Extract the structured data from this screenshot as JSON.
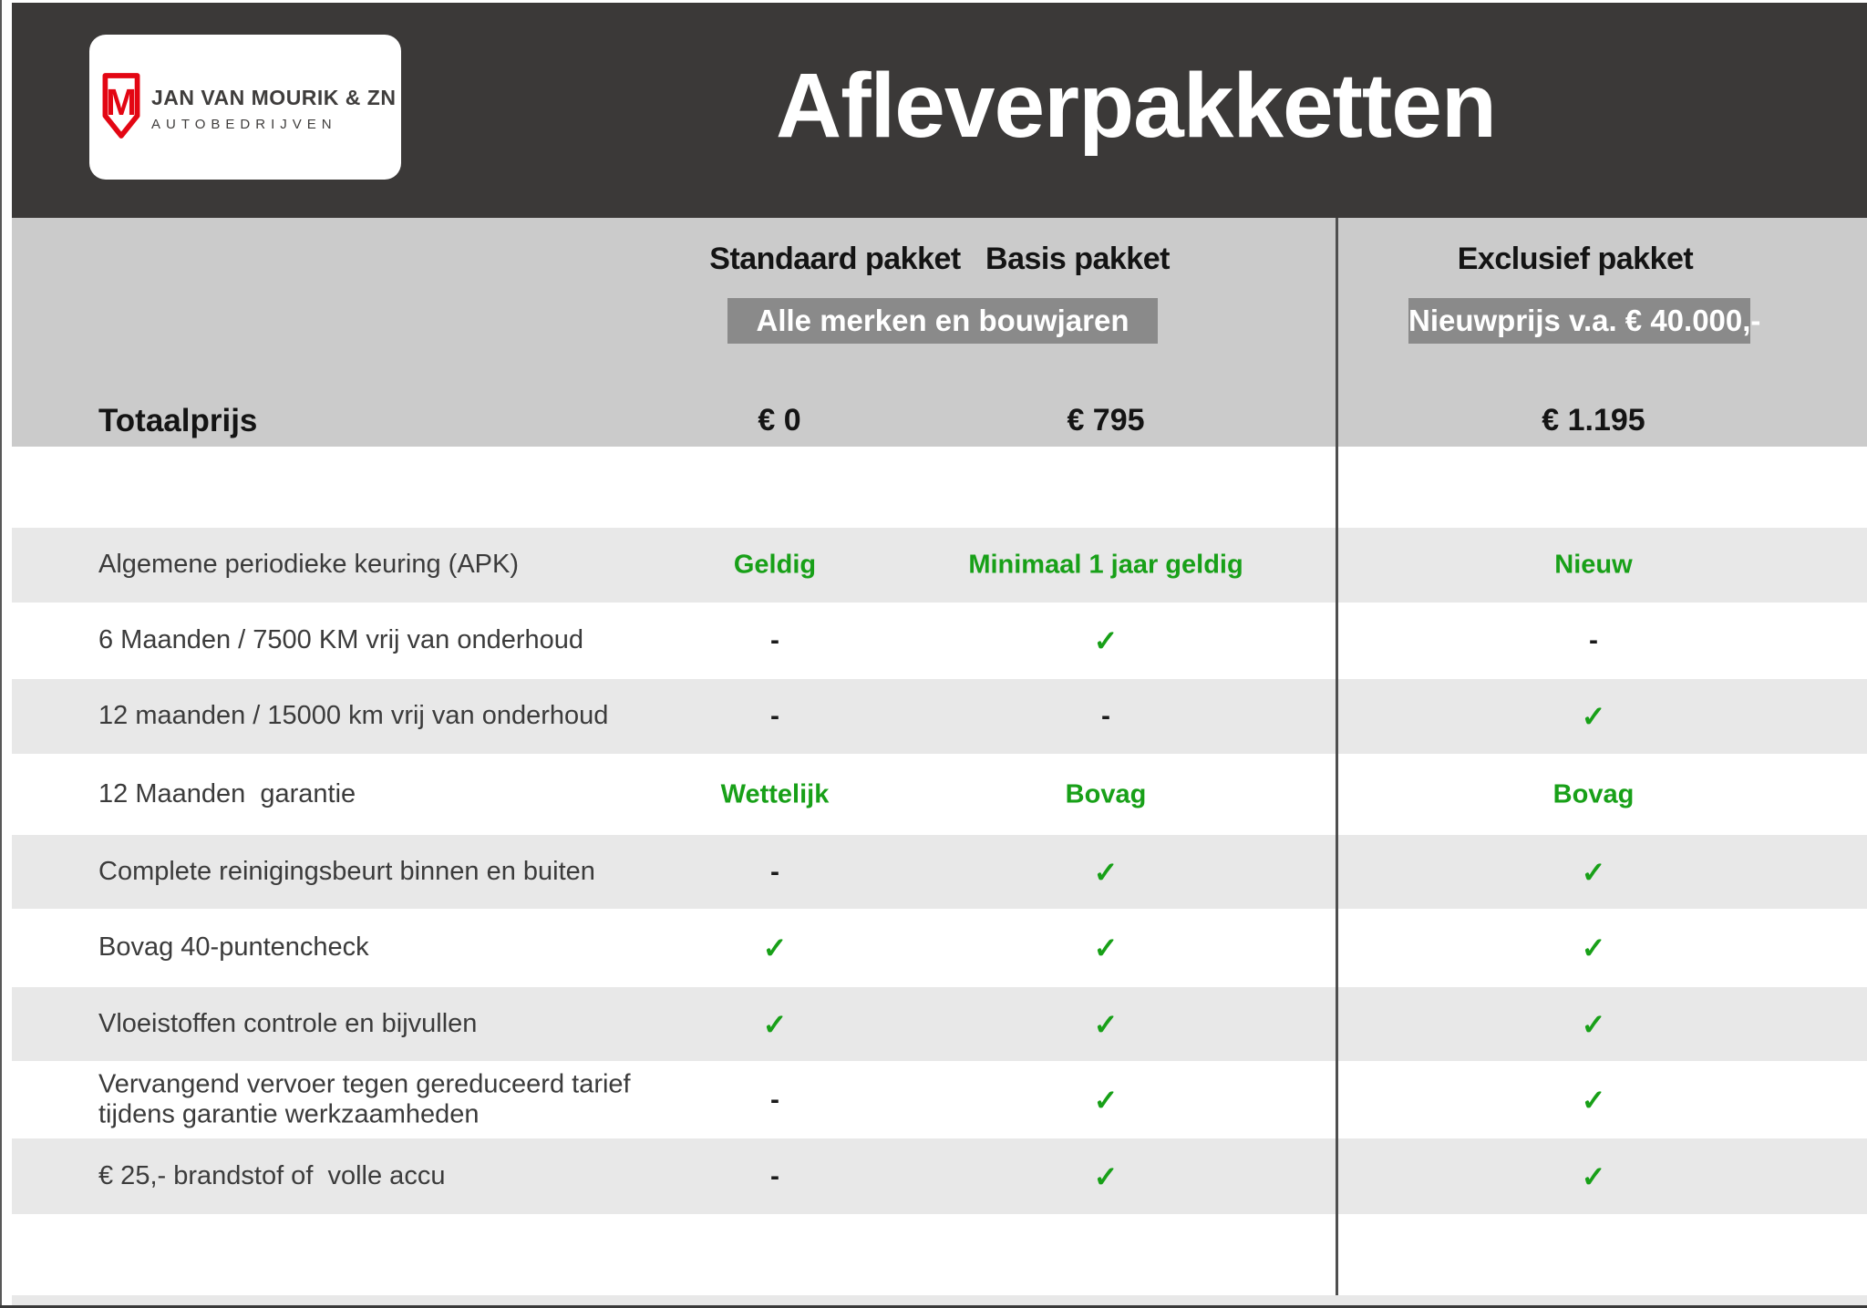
{
  "brand": {
    "monogram": "M",
    "name_line1": "JAN VAN MOURIK & ZN",
    "name_line2": "AUTOBEDRIJVEN"
  },
  "title": "Afleverpakketten",
  "columns": [
    {
      "id": "standaard",
      "label": "Standaard pakket"
    },
    {
      "id": "basis",
      "label": "Basis pakket"
    },
    {
      "id": "exclusief",
      "label": "Exclusief pakket"
    }
  ],
  "badges": {
    "left": "Alle merken en bouwjaren",
    "right": "Nieuwprijs v.a. € 40.000,-"
  },
  "totals": {
    "label": "Totaalprijs",
    "values": [
      "€ 0",
      "€ 795",
      "€ 1.195"
    ]
  },
  "rows": [
    {
      "label": [
        "Algemene periodieke keuring (APK)"
      ],
      "values": [
        {
          "type": "text",
          "text": "Geldig"
        },
        {
          "type": "text",
          "text": "Minimaal 1 jaar geldig"
        },
        {
          "type": "text",
          "text": "Nieuw"
        }
      ]
    },
    {
      "label": [
        "6 Maanden / 7500 KM vrij van onderhoud"
      ],
      "values": [
        {
          "type": "dash"
        },
        {
          "type": "check"
        },
        {
          "type": "dash"
        }
      ]
    },
    {
      "label": [
        "12 maanden / 15000 km vrij van onderhoud"
      ],
      "values": [
        {
          "type": "dash"
        },
        {
          "type": "dash"
        },
        {
          "type": "check"
        }
      ]
    },
    {
      "label": [
        "12 Maanden  garantie"
      ],
      "values": [
        {
          "type": "text",
          "text": "Wettelijk"
        },
        {
          "type": "text",
          "text": "Bovag"
        },
        {
          "type": "text",
          "text": "Bovag"
        }
      ]
    },
    {
      "label": [
        "Complete reinigingsbeurt binnen en buiten"
      ],
      "values": [
        {
          "type": "dash"
        },
        {
          "type": "check"
        },
        {
          "type": "check"
        }
      ]
    },
    {
      "label": [
        "Bovag 40-puntencheck"
      ],
      "values": [
        {
          "type": "check"
        },
        {
          "type": "check"
        },
        {
          "type": "check"
        }
      ]
    },
    {
      "label": [
        "Vloeistoffen controle en bijvullen"
      ],
      "values": [
        {
          "type": "check"
        },
        {
          "type": "check"
        },
        {
          "type": "check"
        }
      ]
    },
    {
      "label": [
        "Vervangend vervoer tegen gereduceerd tarief",
        "tijdens garantie werkzaamheden"
      ],
      "values": [
        {
          "type": "dash"
        },
        {
          "type": "check"
        },
        {
          "type": "check"
        }
      ]
    },
    {
      "label": [
        "€ 25,- brandstof of  volle accu"
      ],
      "values": [
        {
          "type": "dash"
        },
        {
          "type": "check"
        },
        {
          "type": "check"
        }
      ]
    }
  ],
  "glyphs": {
    "check": "✓",
    "dash": "-"
  },
  "colors": {
    "header_bg": "#3B3938",
    "band_bg": "#CBCBCB",
    "stripe_bg": "#E8E8E8",
    "badge_bg": "#8A8A8A",
    "green": "#18A018",
    "brand_red": "#E30613",
    "separator_line": "#4F4F4F"
  }
}
